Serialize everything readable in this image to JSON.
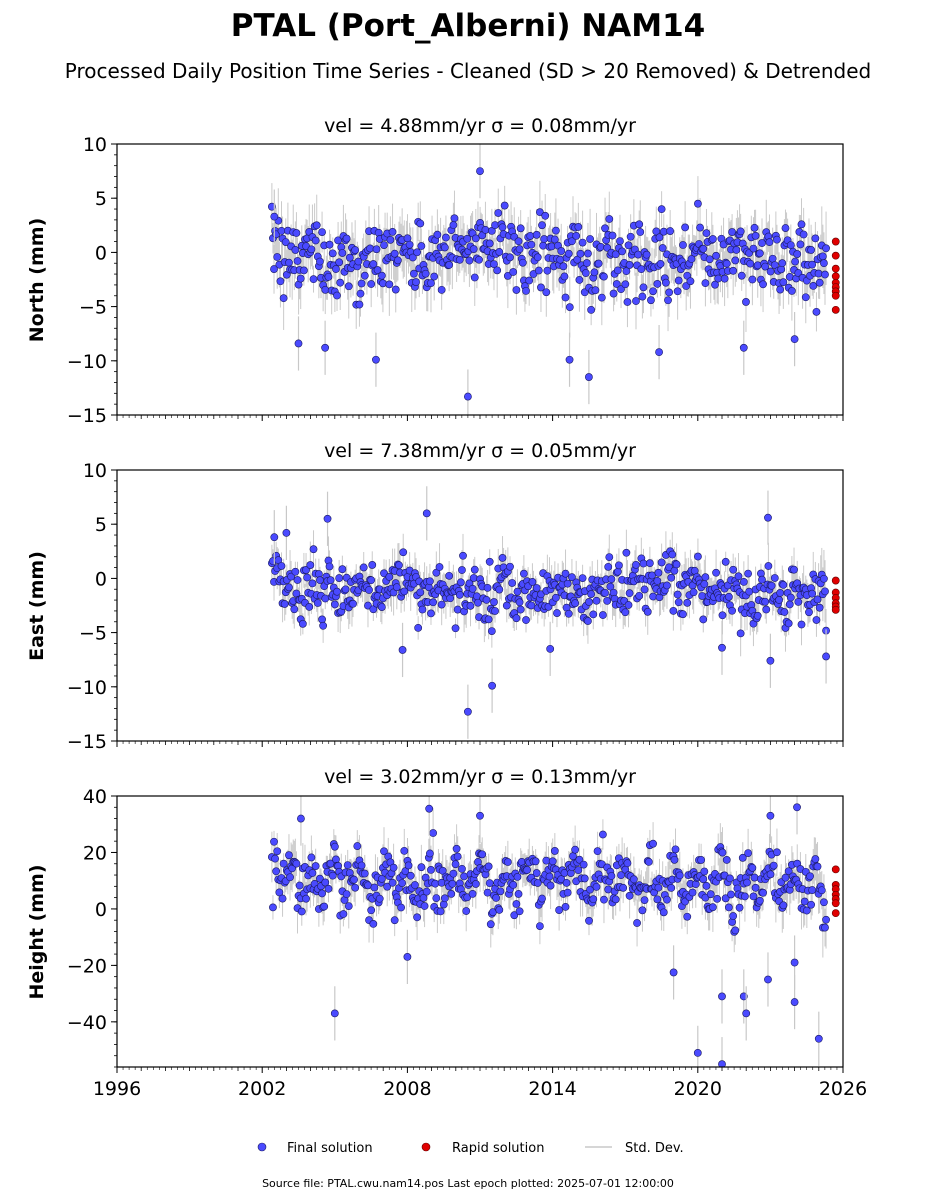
{
  "figure": {
    "title": "PTAL (Port_Alberni) NAM14",
    "subtitle": "Processed Daily Position Time Series - Cleaned (SD > 20 Removed) & Detrended",
    "source_note": "Source file: PTAL.cwu.nam14.pos  Last epoch plotted: 2025-07-01 12:00:00"
  },
  "legend": {
    "placement": "bottom-center",
    "items": [
      {
        "label": "Final solution",
        "color": "#4a4aff"
      },
      {
        "label": "Rapid solution",
        "color": "#e00000"
      },
      {
        "label": "Std. Dev.",
        "color": "#c8c8c8"
      }
    ]
  },
  "chart_data": [
    {
      "type": "scatter",
      "component": "north",
      "title": "vel = 4.88mm/yr   σ = 0.08mm/yr",
      "ylabel": "North (mm)",
      "xlabel": "",
      "xlim": [
        1996,
        2026
      ],
      "ylim": [
        -15,
        10
      ],
      "yticks": [
        10,
        5,
        0,
        -5,
        -10,
        -15
      ],
      "xticks": [
        1996,
        2002,
        2008,
        2014,
        2020,
        2026
      ],
      "grid": false,
      "final_colour": "#4a4aff",
      "rapid_colour": "#e00000",
      "series": [
        {
          "name": "Final solution",
          "x": [
            2002.4,
            2002.6,
            2002.9,
            2003.2,
            2003.6,
            2004.0,
            2004.5,
            2005.0,
            2005.5,
            2006.0,
            2006.5,
            2007.0,
            2007.5,
            2008.0,
            2008.5,
            2009.0,
            2009.5,
            2010.0,
            2010.5,
            2011.0,
            2011.5,
            2012.0,
            2012.5,
            2013.0,
            2013.5,
            2014.0,
            2014.5,
            2015.0,
            2015.5,
            2016.0,
            2016.5,
            2017.0,
            2017.5,
            2018.0,
            2018.5,
            2019.0,
            2019.5,
            2020.0,
            2020.5,
            2021.0,
            2021.5,
            2022.0,
            2022.5,
            2023.0,
            2023.5,
            2024.0,
            2024.5,
            2025.0,
            2025.3
          ],
          "y": [
            -0.5,
            1.5,
            -2.0,
            0.0,
            -1.0,
            1.0,
            -0.5,
            -1.5,
            0.5,
            -2.0,
            0.0,
            -1.0,
            1.0,
            -0.5,
            -1.5,
            0.0,
            -1.0,
            0.5,
            -0.5,
            1.5,
            0.5,
            2.0,
            0.0,
            -1.0,
            1.0,
            0.0,
            -1.5,
            0.5,
            -2.0,
            -0.5,
            0.5,
            -1.5,
            0.5,
            -1.0,
            -0.5,
            0.0,
            -1.5,
            0.5,
            -1.0,
            0.0,
            -0.5,
            -1.0,
            0.0,
            -0.5,
            -1.0,
            0.0,
            -1.0,
            -0.5,
            -1.5
          ],
          "sd": [
            2.0,
            2.0,
            2.0,
            2.0,
            2.0,
            2.0,
            2.0,
            2.0,
            2.0,
            2.0,
            2.0,
            2.0,
            2.0,
            2.0,
            2.0,
            2.0,
            2.0,
            2.0,
            2.0,
            2.0,
            2.0,
            2.0,
            2.0,
            2.0,
            2.0,
            2.0,
            2.0,
            2.0,
            2.0,
            2.0,
            2.0,
            2.0,
            2.0,
            2.0,
            2.0,
            2.0,
            2.0,
            2.0,
            2.0,
            2.0,
            2.0,
            2.0,
            2.0,
            2.0,
            2.0,
            2.0,
            2.0,
            2.0,
            3.0
          ],
          "outliers": [
            [
              2002.5,
              3.3
            ],
            [
              2003.5,
              -8.4
            ],
            [
              2004.6,
              -8.8
            ],
            [
              2006.7,
              -9.9
            ],
            [
              2010.5,
              -13.3
            ],
            [
              2011.0,
              7.5
            ],
            [
              2014.7,
              -9.9
            ],
            [
              2015.5,
              -11.5
            ],
            [
              2018.4,
              -9.2
            ],
            [
              2021.9,
              -8.8
            ],
            [
              2024.0,
              -8.0
            ]
          ]
        },
        {
          "name": "Rapid solution",
          "x": [
            2025.7,
            2025.7,
            2025.7,
            2025.7,
            2025.7,
            2025.7,
            2025.7,
            2025.7,
            2025.7
          ],
          "y": [
            1.0,
            -0.3,
            -1.5,
            -2.2,
            -2.8,
            -3.2,
            -3.6,
            -4.0,
            -5.3
          ]
        }
      ]
    },
    {
      "type": "scatter",
      "component": "east",
      "title": "vel = 7.38mm/yr   σ = 0.05mm/yr",
      "ylabel": "East (mm)",
      "xlabel": "",
      "xlim": [
        1996,
        2026
      ],
      "ylim": [
        -15,
        10
      ],
      "yticks": [
        10,
        5,
        0,
        -5,
        -10,
        -15
      ],
      "xticks": [
        1996,
        2002,
        2008,
        2014,
        2020,
        2026
      ],
      "grid": false,
      "final_colour": "#4a4aff",
      "rapid_colour": "#e00000",
      "series": [
        {
          "name": "Final solution",
          "x": [
            2002.4,
            2002.6,
            2002.9,
            2003.2,
            2003.6,
            2004.0,
            2004.5,
            2005.0,
            2005.5,
            2006.0,
            2006.5,
            2007.0,
            2007.5,
            2008.0,
            2008.5,
            2009.0,
            2009.5,
            2010.0,
            2010.5,
            2011.0,
            2011.5,
            2012.0,
            2012.5,
            2013.0,
            2013.5,
            2014.0,
            2014.5,
            2015.0,
            2015.5,
            2016.0,
            2016.5,
            2017.0,
            2017.5,
            2018.0,
            2018.5,
            2019.0,
            2019.5,
            2020.0,
            2020.5,
            2021.0,
            2021.5,
            2022.0,
            2022.5,
            2023.0,
            2023.5,
            2024.0,
            2024.5,
            2025.0,
            2025.3
          ],
          "y": [
            0.5,
            1.0,
            -1.5,
            -0.5,
            -2.0,
            -0.5,
            -1.5,
            -1.0,
            -2.5,
            -0.5,
            -1.5,
            -1.0,
            0.0,
            -0.5,
            -1.0,
            -1.5,
            -0.5,
            -2.0,
            -1.0,
            -1.5,
            -2.5,
            -0.5,
            -2.0,
            -1.5,
            -2.5,
            -0.5,
            -1.5,
            -1.0,
            -2.5,
            -0.5,
            -1.0,
            -1.5,
            0.0,
            -0.5,
            -1.0,
            -0.5,
            -1.5,
            -0.5,
            -1.0,
            -1.5,
            -0.5,
            -2.5,
            -1.5,
            -1.0,
            -2.0,
            -1.0,
            -1.5,
            -0.5,
            -1.5
          ],
          "sd": [
            1.5,
            1.5,
            1.5,
            1.5,
            1.5,
            1.5,
            1.5,
            1.5,
            1.5,
            1.5,
            1.5,
            1.5,
            1.5,
            1.5,
            1.5,
            1.5,
            1.5,
            1.5,
            1.5,
            1.5,
            1.5,
            1.5,
            1.5,
            1.5,
            1.5,
            1.5,
            1.5,
            1.5,
            1.5,
            1.5,
            1.5,
            1.5,
            1.5,
            1.5,
            1.5,
            1.5,
            1.5,
            1.5,
            1.5,
            1.5,
            1.5,
            1.5,
            1.5,
            1.5,
            1.5,
            1.5,
            1.5,
            1.5,
            2.5
          ],
          "outliers": [
            [
              2002.5,
              3.8
            ],
            [
              2003.0,
              4.2
            ],
            [
              2004.7,
              5.5
            ],
            [
              2007.8,
              -6.6
            ],
            [
              2008.8,
              6.0
            ],
            [
              2010.5,
              -12.3
            ],
            [
              2011.5,
              -9.9
            ],
            [
              2013.9,
              -6.5
            ],
            [
              2021.0,
              -6.4
            ],
            [
              2022.9,
              5.6
            ],
            [
              2023.0,
              -7.6
            ],
            [
              2025.3,
              -7.2
            ]
          ]
        },
        {
          "name": "Rapid solution",
          "x": [
            2025.7,
            2025.7,
            2025.7,
            2025.7,
            2025.7,
            2025.7
          ],
          "y": [
            -0.2,
            -1.3,
            -1.8,
            -2.3,
            -2.6,
            -2.9
          ]
        }
      ]
    },
    {
      "type": "scatter",
      "component": "height",
      "title": "vel = 3.02mm/yr   σ = 0.13mm/yr",
      "ylabel": "Height (mm)",
      "xlabel": "",
      "xlim": [
        1996,
        2026
      ],
      "ylim": [
        -56,
        40
      ],
      "yticks": [
        40,
        20,
        0,
        -20,
        -40
      ],
      "xticks": [
        1996,
        2002,
        2008,
        2014,
        2020,
        2026
      ],
      "xticklabels": [
        "1996",
        "2002",
        "2008",
        "2014",
        "2020",
        "2026"
      ],
      "grid": false,
      "final_colour": "#4a4aff",
      "rapid_colour": "#e00000",
      "series": [
        {
          "name": "Final solution",
          "x": [
            2002.4,
            2002.6,
            2002.9,
            2003.2,
            2003.6,
            2004.0,
            2004.5,
            2005.0,
            2005.5,
            2006.0,
            2006.5,
            2007.0,
            2007.5,
            2008.0,
            2008.5,
            2009.0,
            2009.5,
            2010.0,
            2010.5,
            2011.0,
            2011.5,
            2012.0,
            2012.5,
            2013.0,
            2013.5,
            2014.0,
            2014.5,
            2015.0,
            2015.5,
            2016.0,
            2016.5,
            2017.0,
            2017.5,
            2018.0,
            2018.5,
            2019.0,
            2019.5,
            2020.0,
            2020.5,
            2021.0,
            2021.5,
            2022.0,
            2022.5,
            2023.0,
            2023.5,
            2024.0,
            2024.5,
            2025.0,
            2025.3
          ],
          "y": [
            10.0,
            15.0,
            5.0,
            18.0,
            2.0,
            14.0,
            3.0,
            16.0,
            4.0,
            18.0,
            3.0,
            15.0,
            5.0,
            18.0,
            4.0,
            16.0,
            3.0,
            17.0,
            4.0,
            18.0,
            2.0,
            15.0,
            5.0,
            18.0,
            3.0,
            16.0,
            4.0,
            17.0,
            3.0,
            18.0,
            4.0,
            16.0,
            3.0,
            17.0,
            5.0,
            16.0,
            4.0,
            15.0,
            3.0,
            17.0,
            2.0,
            15.0,
            4.0,
            18.0,
            3.0,
            15.0,
            4.0,
            16.0,
            0.0
          ],
          "sd": [
            6.0,
            6.0,
            6.0,
            6.0,
            6.0,
            6.0,
            6.0,
            6.0,
            6.0,
            6.0,
            6.0,
            6.0,
            6.0,
            6.0,
            6.0,
            6.0,
            6.0,
            6.0,
            6.0,
            6.0,
            6.0,
            6.0,
            6.0,
            6.0,
            6.0,
            6.0,
            6.0,
            6.0,
            6.0,
            6.0,
            6.0,
            6.0,
            6.0,
            6.0,
            6.0,
            6.0,
            6.0,
            6.0,
            6.0,
            6.0,
            6.0,
            6.0,
            6.0,
            6.0,
            6.0,
            6.0,
            6.0,
            6.0,
            8.0
          ],
          "outliers": [
            [
              2003.6,
              32.0
            ],
            [
              2005.0,
              -37.0
            ],
            [
              2008.0,
              -17.0
            ],
            [
              2008.9,
              35.5
            ],
            [
              2011.0,
              33.0
            ],
            [
              2019.0,
              -22.5
            ],
            [
              2020.0,
              -51.0
            ],
            [
              2021.0,
              -31.0
            ],
            [
              2021.0,
              -55.0
            ],
            [
              2021.9,
              -31.0
            ],
            [
              2022.0,
              -37.0
            ],
            [
              2022.9,
              -25.0
            ],
            [
              2023.0,
              33.0
            ],
            [
              2024.0,
              -19.0
            ],
            [
              2024.0,
              -33.0
            ],
            [
              2024.1,
              36.0
            ],
            [
              2025.0,
              -46.0
            ]
          ]
        },
        {
          "name": "Rapid solution",
          "x": [
            2025.7,
            2025.7,
            2025.7,
            2025.7,
            2025.7,
            2025.7,
            2025.7
          ],
          "y": [
            14.0,
            8.5,
            7.0,
            5.0,
            3.5,
            2.0,
            -1.5
          ]
        }
      ]
    }
  ]
}
